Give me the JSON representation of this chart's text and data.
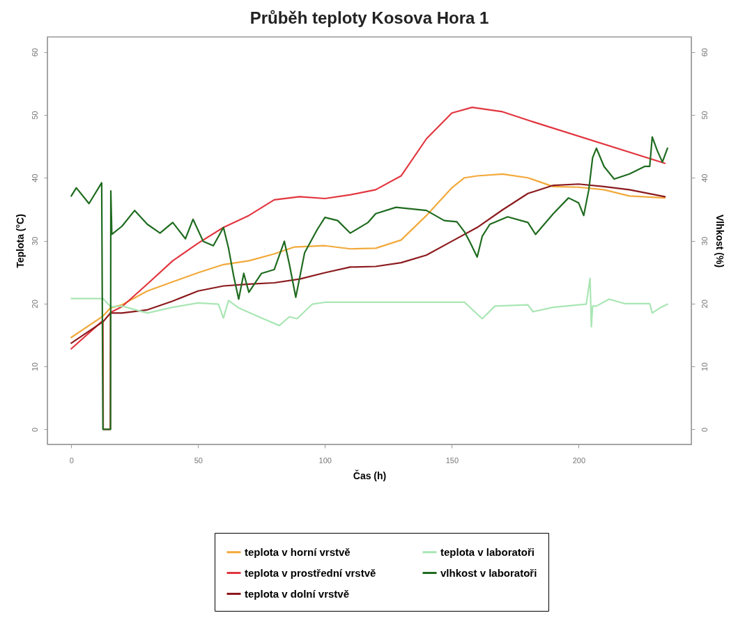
{
  "chart_data": {
    "type": "line",
    "title": "Průběh teploty Kosova Hora 1",
    "xlabel": "Čas (h)",
    "ylabel": "Teplota (°C)",
    "y2label": "Vlhkost (%)",
    "xlim": [
      -9.4,
      244.4
    ],
    "xticks": [
      0,
      50,
      100,
      150,
      200
    ],
    "ylim": [
      -2.4,
      62.4
    ],
    "yticks": [
      0,
      10,
      20,
      30,
      40,
      50,
      60
    ],
    "y2lim": [
      -2.4,
      62.4
    ],
    "y2ticks": [
      0,
      10,
      20,
      30,
      40,
      50,
      60
    ],
    "grid": false,
    "legend": "bottom",
    "series": [
      {
        "name": "teplota v horní vrstvě",
        "color": "#f2a93b",
        "x": [
          0,
          12.5,
          15.5,
          20,
          30,
          50,
          60,
          70,
          80,
          88,
          100,
          110,
          120,
          130,
          140,
          145,
          150,
          155,
          160,
          170,
          180,
          190,
          200,
          210,
          220,
          234
        ],
        "values": [
          14.6,
          18,
          19.3,
          19.8,
          22,
          24.9,
          26.2,
          26.8,
          27.9,
          29,
          29.2,
          28.7,
          28.8,
          30.1,
          34,
          36.2,
          38.4,
          40,
          40.3,
          40.6,
          40,
          38.6,
          38.5,
          38.1,
          37.1,
          36.8
        ]
      },
      {
        "name": "teplota v prostřední vrstvě",
        "color": "#e2363f",
        "x": [
          0,
          12.5,
          12.6,
          15.4,
          15.5,
          20,
          30,
          40,
          50,
          60,
          70,
          80,
          90,
          100,
          110,
          120,
          130,
          140,
          150,
          158,
          170,
          182,
          234
        ],
        "values": [
          12.8,
          17.3,
          0,
          0,
          18.6,
          19.5,
          23.1,
          26.8,
          29.6,
          32.1,
          34,
          36.5,
          37,
          36.7,
          37.3,
          38.1,
          40.3,
          46.2,
          50.3,
          51.2,
          50.5,
          48.9,
          42.3
        ]
      },
      {
        "name": "teplota v dolní vrstvě",
        "color": "#8b1a1e",
        "x": [
          0,
          12.5,
          15.5,
          20,
          30,
          40,
          50,
          60,
          70,
          80,
          90,
          100,
          110,
          120,
          130,
          140,
          150,
          160,
          170,
          180,
          190,
          200,
          210,
          220,
          234
        ],
        "values": [
          13.7,
          17.1,
          18.5,
          18.5,
          19,
          20.4,
          22,
          22.8,
          23.1,
          23.3,
          23.9,
          24.9,
          25.8,
          25.9,
          26.5,
          27.7,
          29.9,
          32.1,
          34.9,
          37.5,
          38.8,
          39,
          38.6,
          38.1,
          37
        ]
      },
      {
        "name": "teplota v laboratoři",
        "color": "#a9e6b4",
        "x": [
          0,
          12.5,
          15.5,
          20,
          30,
          40,
          50,
          58,
          60,
          62,
          66,
          75,
          82,
          86,
          89,
          95,
          100,
          150,
          155,
          162,
          167,
          180,
          182,
          190,
          203,
          204.5,
          205,
          205.5,
          207,
          212,
          218,
          228,
          229,
          232,
          235
        ],
        "values": [
          20.8,
          20.8,
          19.5,
          19.6,
          18.5,
          19.4,
          20.1,
          19.9,
          17.7,
          20.5,
          19.3,
          17.7,
          16.5,
          17.9,
          17.6,
          19.9,
          20.2,
          20.2,
          20.2,
          17.6,
          19.6,
          19.8,
          18.7,
          19.4,
          19.9,
          24,
          16.3,
          19.6,
          19.6,
          20.7,
          20,
          20,
          18.5,
          19.3,
          19.9
        ]
      },
      {
        "name": "vlhkost v laboratoři",
        "color": "#1f6b1f",
        "axis": "y2",
        "x": [
          0,
          2,
          7,
          12,
          12.5,
          15.5,
          15.6,
          16,
          20,
          25,
          30,
          35,
          40,
          45,
          48,
          52,
          56,
          60,
          62,
          64,
          66,
          68,
          70,
          75,
          80,
          84,
          86,
          88.5,
          92,
          97,
          100,
          105,
          110,
          117,
          120,
          128,
          140,
          147,
          152,
          155,
          157,
          160,
          162,
          165,
          172,
          180,
          183,
          190,
          196,
          200,
          202,
          204,
          205.5,
          207,
          210,
          214,
          220,
          226,
          228,
          229,
          231,
          233,
          235
        ],
        "values": [
          37.1,
          38.4,
          35.9,
          39.2,
          0,
          0,
          37.9,
          31,
          32.3,
          34.8,
          32.6,
          31.2,
          32.9,
          30.3,
          33.4,
          29.9,
          29.2,
          32.1,
          28.8,
          24.4,
          20.7,
          24.8,
          21.8,
          24.8,
          25.4,
          29.9,
          26.2,
          21,
          28.1,
          31.8,
          33.7,
          33.2,
          31.2,
          32.9,
          34.3,
          35.3,
          34.8,
          33.2,
          33,
          31.4,
          29.9,
          27.4,
          30.7,
          32.6,
          33.8,
          32.9,
          31,
          34.3,
          36.8,
          36,
          34,
          38.1,
          43.2,
          44.7,
          41.8,
          39.8,
          40.6,
          41.8,
          41.8,
          46.5,
          44.3,
          42.5,
          44.7
        ]
      }
    ]
  }
}
